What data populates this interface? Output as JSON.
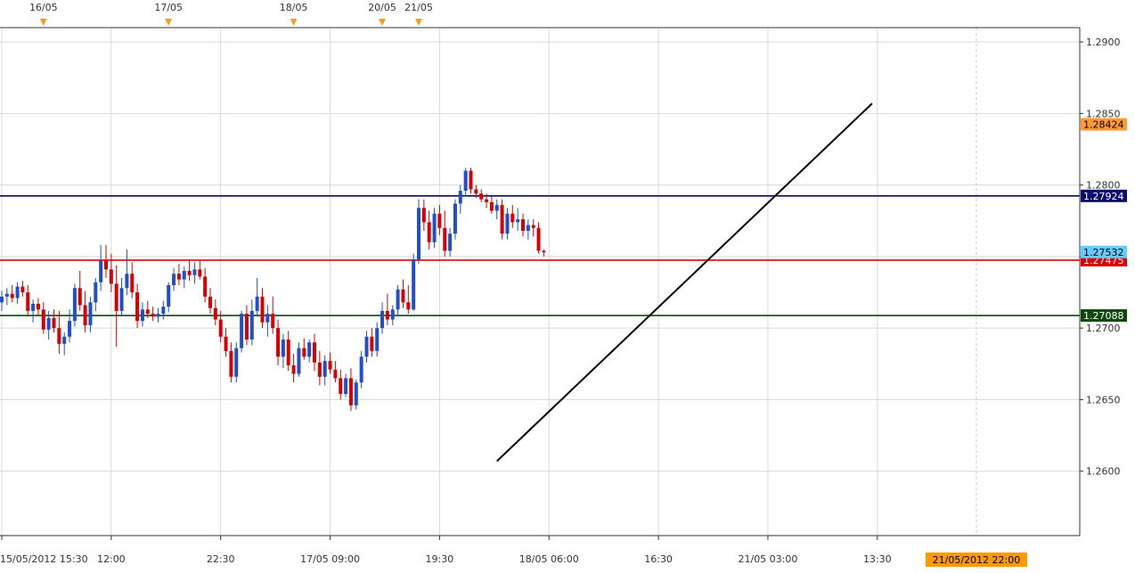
{
  "colors": {
    "bull": "#1f4fcf",
    "bear": "#d80000",
    "grid": "#d9d9d9",
    "frame": "#333333",
    "trendline": "#000000",
    "event_marker": "#f0a020",
    "current_time_badge": "#ff9900",
    "current_price_badge": "#e00000"
  },
  "chart_data": {
    "type": "candlestick",
    "instrument_timeframe": "30-minute bars",
    "ylim": [
      1.2555,
      1.291
    ],
    "y_ticks": [
      "1.2900",
      "1.2850",
      "1.2800",
      "1.2750",
      "1.2700",
      "1.2650",
      "1.2600"
    ],
    "x_ticks": [
      {
        "bar": 0,
        "label": "15/05/2012 15:30"
      },
      {
        "bar": 21,
        "label": "12:00"
      },
      {
        "bar": 42,
        "label": "22:30"
      },
      {
        "bar": 63,
        "label": "17/05 09:00"
      },
      {
        "bar": 84,
        "label": "19:30"
      },
      {
        "bar": 105,
        "label": "18/05 06:00"
      },
      {
        "bar": 126,
        "label": "16:30"
      },
      {
        "bar": 147,
        "label": "21/05 03:00"
      },
      {
        "bar": 168,
        "label": "13:30"
      }
    ],
    "current_time_label": "21/05/2012 22:00",
    "current_time_bar": 187,
    "date_markers": [
      {
        "bar": 8,
        "label": "16/05"
      },
      {
        "bar": 32,
        "label": "17/05"
      },
      {
        "bar": 56,
        "label": "18/05"
      },
      {
        "bar": 73,
        "label": "20/05"
      },
      {
        "bar": 80,
        "label": "21/05"
      }
    ],
    "horizontal_lines": [
      {
        "price": 1.27924,
        "label": "1.27924",
        "color": "#0a0a6e",
        "text_color": "#ffffff"
      },
      {
        "price": 1.27475,
        "label": "1.27475",
        "color": "#e00000",
        "text_color": "#ffffff"
      },
      {
        "price": 1.27088,
        "label": "1.27088",
        "color": "#0c4a0c",
        "text_color": "#ffffff"
      }
    ],
    "price_badges": [
      {
        "price": 1.28424,
        "label": "1.28424",
        "color": "#ff9933",
        "text_color": "#000000"
      },
      {
        "price": 1.27532,
        "label": "1.27532",
        "color": "#66ccff",
        "text_color": "#000000"
      }
    ],
    "trendline": {
      "bar1": 95,
      "price1": 1.2607,
      "bar2": 167,
      "price2": 1.2857
    },
    "ohlc": [
      [
        1.2718,
        1.2726,
        1.2712,
        1.2722
      ],
      [
        1.2722,
        1.2728,
        1.2716,
        1.2724
      ],
      [
        1.2724,
        1.273,
        1.2718,
        1.2721
      ],
      [
        1.2721,
        1.2732,
        1.2717,
        1.2729
      ],
      [
        1.2729,
        1.2733,
        1.2722,
        1.2725
      ],
      [
        1.2725,
        1.273,
        1.2708,
        1.2712
      ],
      [
        1.2712,
        1.272,
        1.2704,
        1.2717
      ],
      [
        1.2717,
        1.2721,
        1.2709,
        1.2713
      ],
      [
        1.2713,
        1.2718,
        1.2696,
        1.2699
      ],
      [
        1.2699,
        1.2712,
        1.2692,
        1.2707
      ],
      [
        1.2707,
        1.2713,
        1.2697,
        1.27
      ],
      [
        1.27,
        1.2712,
        1.2682,
        1.2689
      ],
      [
        1.2689,
        1.2697,
        1.2681,
        1.2694
      ],
      [
        1.2694,
        1.2713,
        1.269,
        1.2705
      ],
      [
        1.2705,
        1.2731,
        1.2701,
        1.2728
      ],
      [
        1.2728,
        1.274,
        1.2712,
        1.2716
      ],
      [
        1.2716,
        1.2726,
        1.2697,
        1.2702
      ],
      [
        1.2702,
        1.2722,
        1.2697,
        1.2718
      ],
      [
        1.2718,
        1.2735,
        1.2712,
        1.2732
      ],
      [
        1.2732,
        1.2758,
        1.2726,
        1.2747
      ],
      [
        1.2747,
        1.2758,
        1.2735,
        1.2741
      ],
      [
        1.2741,
        1.2752,
        1.2725,
        1.2731
      ],
      [
        1.2731,
        1.2744,
        1.2687,
        1.2712
      ],
      [
        1.2712,
        1.2735,
        1.2708,
        1.2728
      ],
      [
        1.2728,
        1.2755,
        1.2723,
        1.2738
      ],
      [
        1.2738,
        1.2746,
        1.2721,
        1.2725
      ],
      [
        1.2725,
        1.2731,
        1.27,
        1.2705
      ],
      [
        1.2705,
        1.2718,
        1.2701,
        1.2713
      ],
      [
        1.2713,
        1.2719,
        1.2707,
        1.271
      ],
      [
        1.271,
        1.2715,
        1.2705,
        1.2708
      ],
      [
        1.2708,
        1.2714,
        1.2704,
        1.271
      ],
      [
        1.271,
        1.2719,
        1.2706,
        1.2715
      ],
      [
        1.2715,
        1.2732,
        1.2711,
        1.273
      ],
      [
        1.273,
        1.2742,
        1.2726,
        1.2738
      ],
      [
        1.2738,
        1.2745,
        1.273,
        1.2734
      ],
      [
        1.2734,
        1.2743,
        1.2728,
        1.274
      ],
      [
        1.274,
        1.2748,
        1.2733,
        1.2737
      ],
      [
        1.2737,
        1.2746,
        1.2731,
        1.2741
      ],
      [
        1.2741,
        1.2747,
        1.2734,
        1.2736
      ],
      [
        1.2736,
        1.2742,
        1.2718,
        1.2722
      ],
      [
        1.2722,
        1.2728,
        1.271,
        1.2714
      ],
      [
        1.2714,
        1.272,
        1.2702,
        1.2706
      ],
      [
        1.2706,
        1.2712,
        1.269,
        1.2694
      ],
      [
        1.2694,
        1.27,
        1.268,
        1.2684
      ],
      [
        1.2684,
        1.269,
        1.2662,
        1.2666
      ],
      [
        1.2666,
        1.269,
        1.2662,
        1.2686
      ],
      [
        1.2686,
        1.2712,
        1.2683,
        1.271
      ],
      [
        1.271,
        1.2716,
        1.2688,
        1.2692
      ],
      [
        1.2692,
        1.272,
        1.2688,
        1.2712
      ],
      [
        1.2712,
        1.2735,
        1.2708,
        1.2722
      ],
      [
        1.2722,
        1.2728,
        1.27,
        1.2704
      ],
      [
        1.2704,
        1.2716,
        1.2694,
        1.271
      ],
      [
        1.271,
        1.2722,
        1.2696,
        1.27
      ],
      [
        1.27,
        1.2706,
        1.2674,
        1.268
      ],
      [
        1.268,
        1.2696,
        1.2672,
        1.2692
      ],
      [
        1.2692,
        1.2698,
        1.267,
        1.2674
      ],
      [
        1.2674,
        1.2682,
        1.2662,
        1.2668
      ],
      [
        1.2668,
        1.269,
        1.2666,
        1.2686
      ],
      [
        1.2686,
        1.2693,
        1.2678,
        1.268
      ],
      [
        1.268,
        1.2692,
        1.2676,
        1.269
      ],
      [
        1.269,
        1.2696,
        1.267,
        1.2676
      ],
      [
        1.2676,
        1.2684,
        1.266,
        1.2666
      ],
      [
        1.2666,
        1.2681,
        1.266,
        1.2677
      ],
      [
        1.2677,
        1.2683,
        1.2668,
        1.2671
      ],
      [
        1.2671,
        1.2677,
        1.2662,
        1.2665
      ],
      [
        1.2665,
        1.2671,
        1.265,
        1.2654
      ],
      [
        1.2654,
        1.2668,
        1.2652,
        1.2665
      ],
      [
        1.2665,
        1.2672,
        1.2642,
        1.2646
      ],
      [
        1.2646,
        1.2664,
        1.2643,
        1.2662
      ],
      [
        1.2662,
        1.2684,
        1.2658,
        1.268
      ],
      [
        1.268,
        1.2698,
        1.2676,
        1.2694
      ],
      [
        1.2694,
        1.27,
        1.268,
        1.2684
      ],
      [
        1.2684,
        1.2704,
        1.268,
        1.27
      ],
      [
        1.27,
        1.2718,
        1.2696,
        1.2712
      ],
      [
        1.2712,
        1.2724,
        1.2702,
        1.2706
      ],
      [
        1.2706,
        1.2716,
        1.2702,
        1.2713
      ],
      [
        1.2713,
        1.273,
        1.2708,
        1.2727
      ],
      [
        1.2727,
        1.2734,
        1.2714,
        1.2718
      ],
      [
        1.2718,
        1.273,
        1.271,
        1.2713
      ],
      [
        1.2713,
        1.2752,
        1.2712,
        1.2748
      ],
      [
        1.2748,
        1.279,
        1.2745,
        1.2784
      ],
      [
        1.2784,
        1.279,
        1.2768,
        1.2774
      ],
      [
        1.2774,
        1.2782,
        1.2755,
        1.276
      ],
      [
        1.276,
        1.2784,
        1.2756,
        1.278
      ],
      [
        1.278,
        1.2786,
        1.2765,
        1.277
      ],
      [
        1.277,
        1.2782,
        1.275,
        1.2754
      ],
      [
        1.2754,
        1.277,
        1.275,
        1.2766
      ],
      [
        1.2766,
        1.279,
        1.2762,
        1.2787
      ],
      [
        1.2787,
        1.28,
        1.278,
        1.2796
      ],
      [
        1.2796,
        1.2812,
        1.2792,
        1.281
      ],
      [
        1.281,
        1.2812,
        1.2794,
        1.2797
      ],
      [
        1.2797,
        1.28,
        1.2791,
        1.2794
      ],
      [
        1.2794,
        1.2797,
        1.2788,
        1.279
      ],
      [
        1.279,
        1.2794,
        1.2784,
        1.2788
      ],
      [
        1.2788,
        1.2792,
        1.278,
        1.2782
      ],
      [
        1.2782,
        1.279,
        1.2776,
        1.2786
      ],
      [
        1.2786,
        1.279,
        1.2762,
        1.2766
      ],
      [
        1.2766,
        1.2784,
        1.2762,
        1.278
      ],
      [
        1.278,
        1.2786,
        1.277,
        1.2774
      ],
      [
        1.2774,
        1.2784,
        1.2768,
        1.2776
      ],
      [
        1.2776,
        1.278,
        1.2764,
        1.2768
      ],
      [
        1.2768,
        1.2776,
        1.2762,
        1.2772
      ],
      [
        1.2772,
        1.2776,
        1.2764,
        1.277
      ],
      [
        1.277,
        1.2774,
        1.2752,
        1.2754
      ],
      [
        1.2754,
        1.2755,
        1.275,
        1.2753
      ]
    ]
  }
}
